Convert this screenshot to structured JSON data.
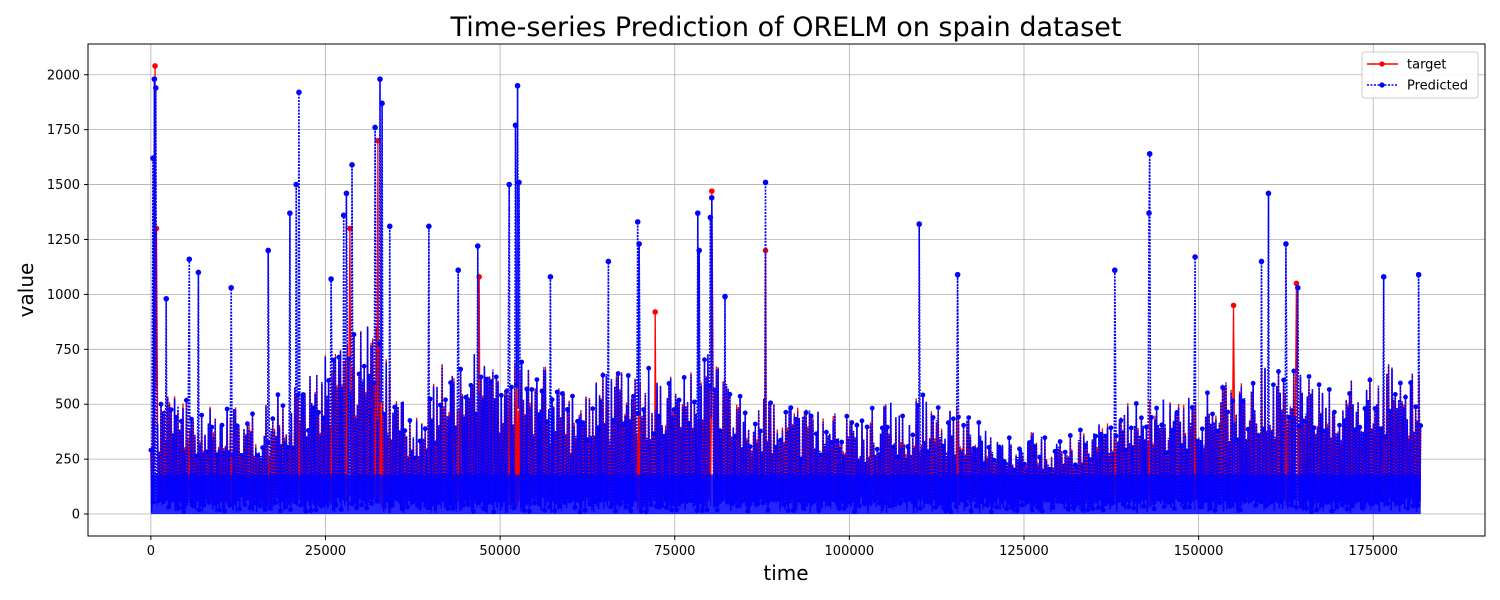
{
  "chart_data": {
    "type": "line",
    "title": "Time-series Prediction of ORELM on spain dataset",
    "xlabel": "time",
    "ylabel": "value",
    "xlim": [
      -9000,
      191000
    ],
    "ylim": [
      -100,
      2140
    ],
    "xticks": [
      0,
      25000,
      50000,
      75000,
      100000,
      125000,
      150000,
      175000
    ],
    "yticks": [
      0,
      250,
      500,
      750,
      1000,
      1250,
      1500,
      1750,
      2000
    ],
    "grid": true,
    "legend_position": "top-right",
    "series": [
      {
        "name": "target",
        "color": "#ff0000",
        "style": "solid",
        "marker": "dot",
        "peaks": [
          [
            600,
            2040
          ],
          [
            800,
            1300
          ],
          [
            32500,
            1700
          ],
          [
            80300,
            1470
          ],
          [
            88000,
            1200
          ],
          [
            72200,
            920
          ],
          [
            155000,
            950
          ],
          [
            164000,
            1050
          ],
          [
            47000,
            1080
          ],
          [
            28500,
            1300
          ]
        ]
      },
      {
        "name": "Predicted",
        "color": "#0000ff",
        "style": "dotted",
        "marker": "dot",
        "peaks": [
          [
            500,
            1980
          ],
          [
            700,
            1940
          ],
          [
            300,
            1620
          ],
          [
            2200,
            980
          ],
          [
            5500,
            1160
          ],
          [
            6800,
            1100
          ],
          [
            11500,
            1030
          ],
          [
            16800,
            1200
          ],
          [
            19900,
            1370
          ],
          [
            20800,
            1500
          ],
          [
            21200,
            1920
          ],
          [
            25800,
            1070
          ],
          [
            27600,
            1360
          ],
          [
            28000,
            1460
          ],
          [
            28800,
            1590
          ],
          [
            32100,
            1760
          ],
          [
            32800,
            1980
          ],
          [
            33100,
            1870
          ],
          [
            34200,
            1310
          ],
          [
            39800,
            1310
          ],
          [
            44000,
            1110
          ],
          [
            46800,
            1220
          ],
          [
            51300,
            1500
          ],
          [
            52500,
            1950
          ],
          [
            52200,
            1770
          ],
          [
            52700,
            1510
          ],
          [
            57200,
            1080
          ],
          [
            65500,
            1150
          ],
          [
            69700,
            1330
          ],
          [
            69900,
            1230
          ],
          [
            78300,
            1370
          ],
          [
            78500,
            1200
          ],
          [
            80300,
            1440
          ],
          [
            80100,
            1350
          ],
          [
            82200,
            990
          ],
          [
            88000,
            1510
          ],
          [
            110000,
            1320
          ],
          [
            115500,
            1090
          ],
          [
            138000,
            1110
          ],
          [
            143000,
            1640
          ],
          [
            142900,
            1370
          ],
          [
            149500,
            1170
          ],
          [
            159000,
            1150
          ],
          [
            160000,
            1460
          ],
          [
            162500,
            1230
          ],
          [
            164200,
            1030
          ],
          [
            176500,
            1080
          ],
          [
            181500,
            1090
          ]
        ]
      }
    ]
  }
}
